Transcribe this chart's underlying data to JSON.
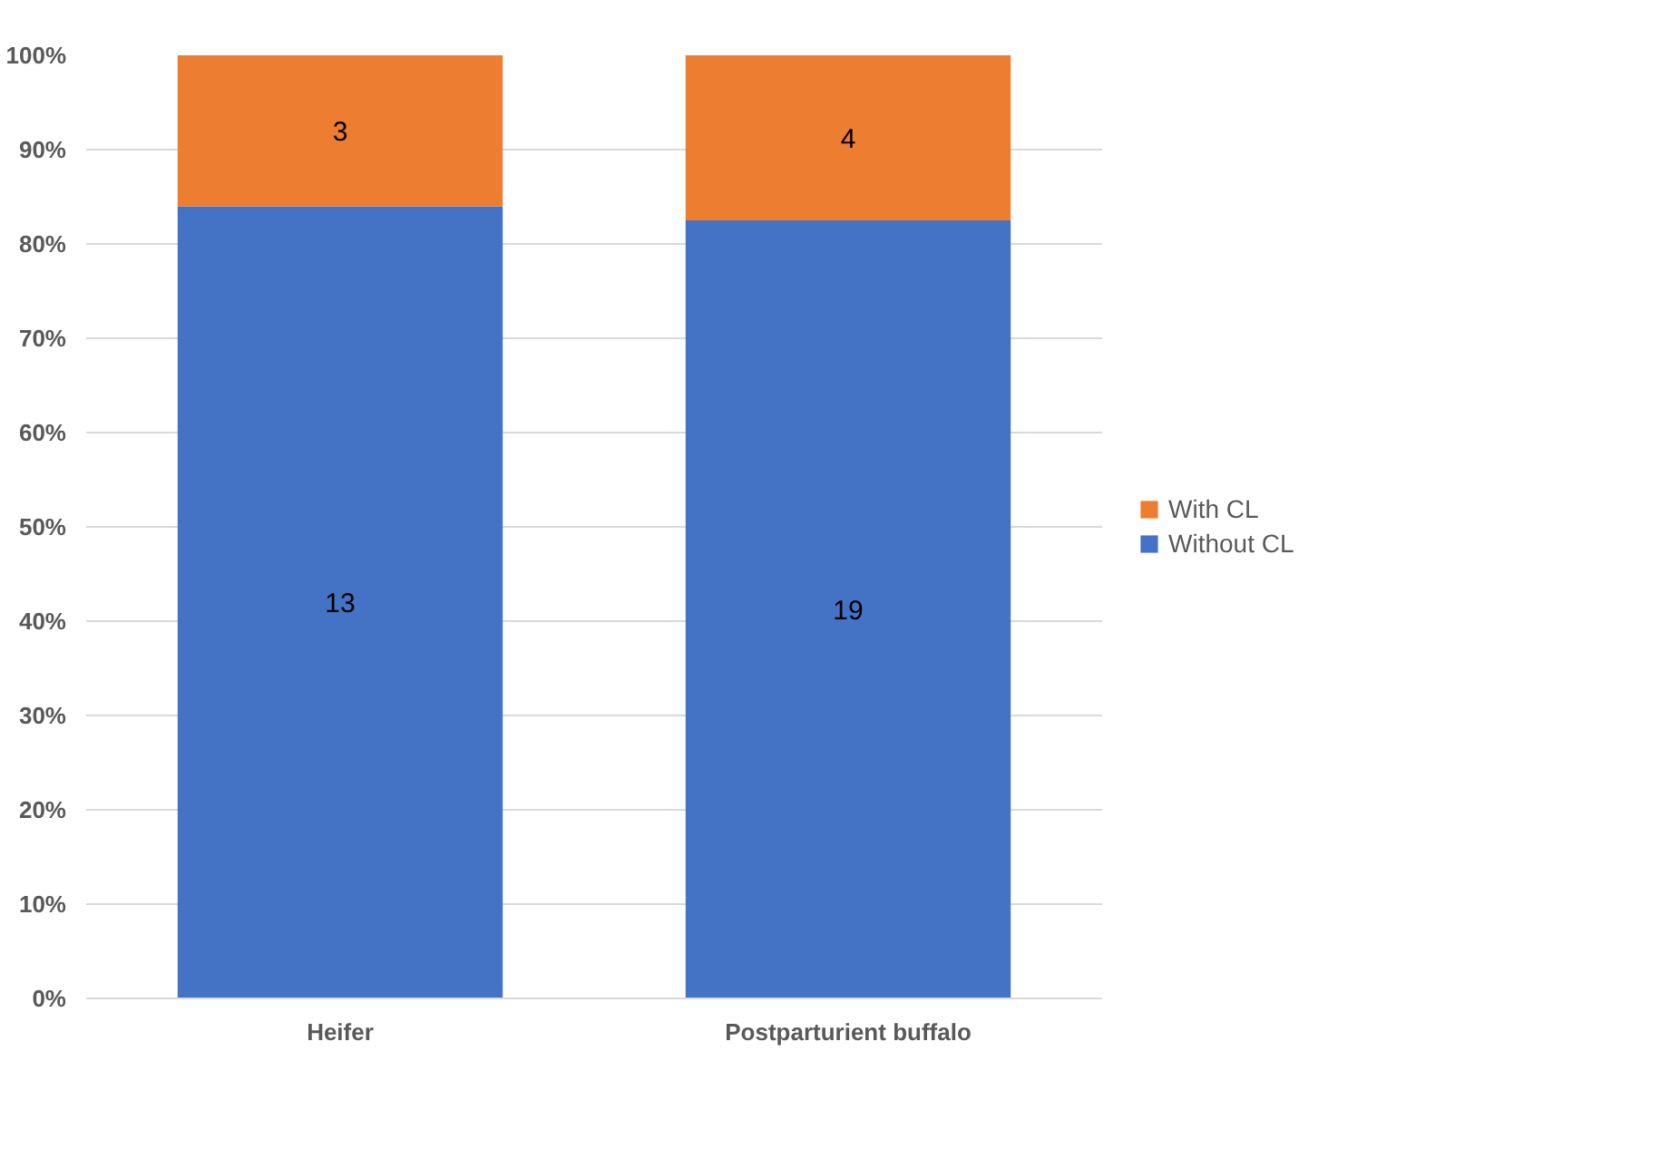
{
  "chart_data": {
    "type": "bar",
    "stacked": true,
    "categories": [
      "Heifer",
      "Postparturient buffalo"
    ],
    "series": [
      {
        "name": "Without CL",
        "color": "#4472c4",
        "values": [
          84,
          82.5
        ]
      },
      {
        "name": "With CL",
        "color": "#ed7d31",
        "values": [
          16,
          17.5
        ]
      }
    ],
    "annotations": [
      "13",
      "19",
      "3",
      "4"
    ],
    "ylim": [
      0,
      100
    ],
    "yticks": [
      {
        "value": 0,
        "label": "0%"
      },
      {
        "value": 10,
        "label": "10%"
      },
      {
        "value": 20,
        "label": "20%"
      },
      {
        "value": 30,
        "label": "30%"
      },
      {
        "value": 40,
        "label": "40%"
      },
      {
        "value": 50,
        "label": "50%"
      },
      {
        "value": 60,
        "label": "60%"
      },
      {
        "value": 70,
        "label": "70%"
      },
      {
        "value": 80,
        "label": "80%"
      },
      {
        "value": 90,
        "label": "90%"
      },
      {
        "value": 100,
        "label": "100%"
      }
    ],
    "grid": "y",
    "legend": "right"
  }
}
